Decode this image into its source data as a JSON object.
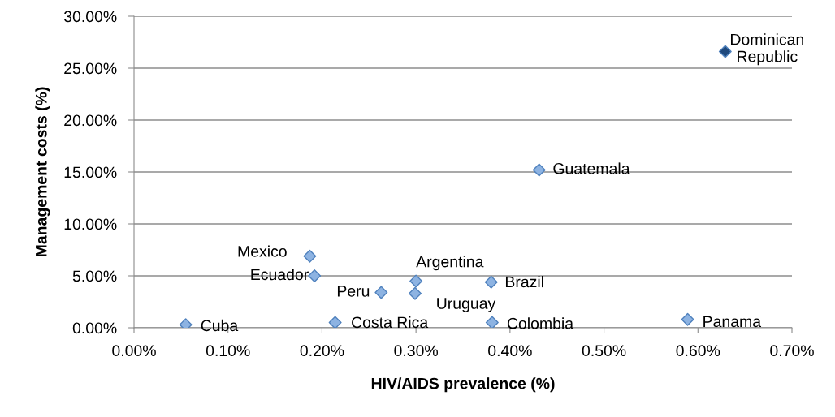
{
  "chart_data": {
    "type": "scatter",
    "xlabel": "HIV/AIDS prevalence (%)",
    "ylabel": "Management costs (%)",
    "x": [
      0.629,
      0.431,
      0.187,
      0.192,
      0.3,
      0.38,
      0.263,
      0.299,
      0.055,
      0.214,
      0.381,
      0.589
    ],
    "values": [
      26.6,
      15.2,
      6.9,
      5.0,
      4.5,
      4.4,
      3.4,
      3.3,
      0.3,
      0.5,
      0.5,
      0.8
    ],
    "colors": [
      "#1f497d",
      "#8db3e2",
      "#8db3e2",
      "#8db3e2",
      "#8db3e2",
      "#8db3e2",
      "#8db3e2",
      "#8db3e2",
      "#8db3e2",
      "#8db3e2",
      "#8db3e2",
      "#8db3e2"
    ],
    "marker": "diamond",
    "grid": "y",
    "legend": false,
    "xlim": [
      0,
      0.7
    ],
    "ylim": [
      0,
      30
    ],
    "xticks": [
      {
        "value": 0,
        "label": "0.00%"
      },
      {
        "value": 0.1,
        "label": "0.10%"
      },
      {
        "value": 0.2,
        "label": "0.20%"
      },
      {
        "value": 0.3,
        "label": "0.30%"
      },
      {
        "value": 0.4,
        "label": "0.40%"
      },
      {
        "value": 0.5,
        "label": "0.50%"
      },
      {
        "value": 0.6,
        "label": "0.60%"
      },
      {
        "value": 0.7,
        "label": "0.70%"
      }
    ],
    "yticks": [
      {
        "value": 0,
        "label": "0.00%"
      },
      {
        "value": 5,
        "label": "5.00%"
      },
      {
        "value": 10,
        "label": "10.00%"
      },
      {
        "value": 15,
        "label": "15.00%"
      },
      {
        "value": 20,
        "label": "20.00%"
      },
      {
        "value": 25,
        "label": "25.00%"
      },
      {
        "value": 30,
        "label": "30.00%"
      }
    ],
    "annotations": [
      {
        "text": "Dominican\nRepublic",
        "x": 0.629,
        "y": 26.6
      },
      {
        "text": "Guatemala",
        "x": 0.431,
        "y": 15.2
      },
      {
        "text": "Mexico",
        "x": 0.187,
        "y": 6.9
      },
      {
        "text": "Ecuador",
        "x": 0.192,
        "y": 5.0
      },
      {
        "text": "Argentina",
        "x": 0.3,
        "y": 4.5
      },
      {
        "text": "Brazil",
        "x": 0.38,
        "y": 4.4
      },
      {
        "text": "Peru",
        "x": 0.263,
        "y": 3.4
      },
      {
        "text": "Uruguay",
        "x": 0.299,
        "y": 3.3
      },
      {
        "text": "Cuba",
        "x": 0.055,
        "y": 0.3
      },
      {
        "text": "Costa Rica",
        "x": 0.214,
        "y": 0.5
      },
      {
        "text": "Colombia",
        "x": 0.381,
        "y": 0.5
      },
      {
        "text": "Panama",
        "x": 0.589,
        "y": 0.8
      }
    ]
  }
}
